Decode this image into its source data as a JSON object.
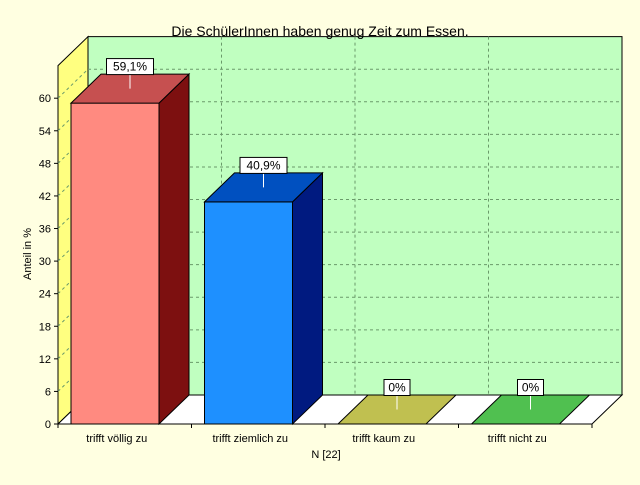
{
  "chart_data": {
    "type": "bar",
    "title": "Die SchülerInnen haben genug Zeit zum Essen.",
    "xlabel": "N [22]",
    "ylabel": "Anteil in %",
    "categories": [
      "trifft völlig zu",
      "trifft ziemlich zu",
      "trifft kaum zu",
      "trifft nicht zu"
    ],
    "values": [
      59.1,
      40.9,
      0,
      0
    ],
    "data_labels": [
      "59,1%",
      "40,9%",
      "0%",
      "0%"
    ],
    "yticks": [
      "0",
      "6",
      "12",
      "18",
      "24",
      "30",
      "36",
      "42",
      "48",
      "54",
      "60"
    ],
    "ylim": [
      0,
      66
    ],
    "grid": true,
    "legend": "none",
    "colors": {
      "background": "#ffffe1",
      "plot_back": "#c0ffc0",
      "left_wall": "#ffff80",
      "floor": "#ffffff",
      "grid": "#6a9a6a",
      "bars": [
        {
          "front": "#ff8a80",
          "side": "#7d1010",
          "top": "#c65050"
        },
        {
          "front": "#1e90ff",
          "side": "#001a80",
          "top": "#0050c0"
        },
        {
          "front": "#c0c050",
          "side": "#808020",
          "top": "#c0c050"
        },
        {
          "front": "#50c050",
          "side": "#208020",
          "top": "#50c050"
        }
      ]
    }
  }
}
